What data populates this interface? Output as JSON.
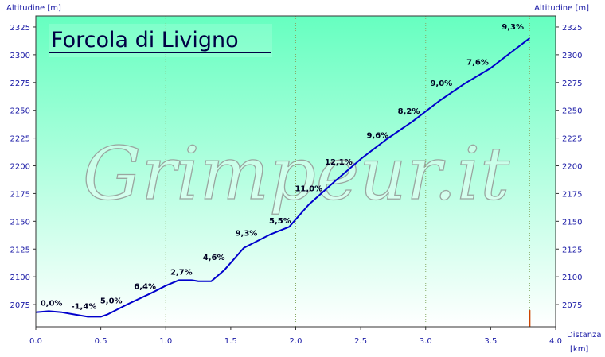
{
  "watermark": "Grimpeur.it",
  "colors": {
    "bg_top": "#66ffc0",
    "bg_bottom": "#ffffff",
    "profile": "#0000cc",
    "grid": "#88aa66",
    "tick_text": "#1a1aa6"
  },
  "chart_data": {
    "type": "line",
    "title": "Forcola di Livigno",
    "ylabel_left": "Altitudine [m]",
    "ylabel_right": "Altitudine [m]",
    "xlabel": "Distanza",
    "xunit": "[km]",
    "xlim": [
      0,
      4.0
    ],
    "ylim": [
      2055,
      2335
    ],
    "x_ticks": [
      0.0,
      0.5,
      1.0,
      1.5,
      2.0,
      2.5,
      3.0,
      3.5,
      4.0
    ],
    "x_tick_labels": [
      "0.0",
      "0.5",
      "1.0",
      "1.5",
      "2.0",
      "2.5",
      "3.0",
      "3.5",
      "4.0"
    ],
    "y_ticks": [
      2075,
      2100,
      2125,
      2150,
      2175,
      2200,
      2225,
      2250,
      2275,
      2300,
      2325
    ],
    "y_tick_labels": [
      "2075",
      "2100",
      "2125",
      "2150",
      "2175",
      "2200",
      "2225",
      "2250",
      "2275",
      "2300",
      "2325"
    ],
    "vertical_gridlines": [
      1.0,
      2.0,
      3.0,
      3.8
    ],
    "grid": "vertical dotted",
    "end_marker": {
      "x": 3.8,
      "y_from": 2055,
      "y_to": 2070,
      "color": "#cc4400"
    },
    "profile": [
      {
        "x": 0.0,
        "y": 2068
      },
      {
        "x": 0.1,
        "y": 2069
      },
      {
        "x": 0.2,
        "y": 2068
      },
      {
        "x": 0.3,
        "y": 2066
      },
      {
        "x": 0.4,
        "y": 2064
      },
      {
        "x": 0.5,
        "y": 2064
      },
      {
        "x": 0.55,
        "y": 2066
      },
      {
        "x": 0.7,
        "y": 2075
      },
      {
        "x": 0.9,
        "y": 2086
      },
      {
        "x": 1.0,
        "y": 2092
      },
      {
        "x": 1.1,
        "y": 2097
      },
      {
        "x": 1.2,
        "y": 2097
      },
      {
        "x": 1.25,
        "y": 2096
      },
      {
        "x": 1.35,
        "y": 2096
      },
      {
        "x": 1.45,
        "y": 2106
      },
      {
        "x": 1.6,
        "y": 2126
      },
      {
        "x": 1.8,
        "y": 2138
      },
      {
        "x": 1.95,
        "y": 2145
      },
      {
        "x": 2.1,
        "y": 2165
      },
      {
        "x": 2.3,
        "y": 2186
      },
      {
        "x": 2.5,
        "y": 2206
      },
      {
        "x": 2.7,
        "y": 2224
      },
      {
        "x": 2.9,
        "y": 2240
      },
      {
        "x": 3.1,
        "y": 2258
      },
      {
        "x": 3.3,
        "y": 2274
      },
      {
        "x": 3.5,
        "y": 2288
      },
      {
        "x": 3.7,
        "y": 2306
      },
      {
        "x": 3.8,
        "y": 2315
      }
    ],
    "grade_labels": [
      {
        "text": "0,0%",
        "x": 0.12,
        "y": 2074
      },
      {
        "text": "-1,4%",
        "x": 0.37,
        "y": 2071
      },
      {
        "text": "5,0%",
        "x": 0.58,
        "y": 2076
      },
      {
        "text": "6,4%",
        "x": 0.84,
        "y": 2089
      },
      {
        "text": "2,7%",
        "x": 1.12,
        "y": 2102
      },
      {
        "text": "4,6%",
        "x": 1.37,
        "y": 2115
      },
      {
        "text": "9,3%",
        "x": 1.62,
        "y": 2137
      },
      {
        "text": "5,5%",
        "x": 1.88,
        "y": 2148
      },
      {
        "text": "11,0%",
        "x": 2.1,
        "y": 2177
      },
      {
        "text": "12,1%",
        "x": 2.33,
        "y": 2201
      },
      {
        "text": "9,6%",
        "x": 2.63,
        "y": 2225
      },
      {
        "text": "8,2%",
        "x": 2.87,
        "y": 2247
      },
      {
        "text": "9,0%",
        "x": 3.12,
        "y": 2272
      },
      {
        "text": "7,6%",
        "x": 3.4,
        "y": 2291
      },
      {
        "text": "9,3%",
        "x": 3.67,
        "y": 2323
      }
    ]
  }
}
